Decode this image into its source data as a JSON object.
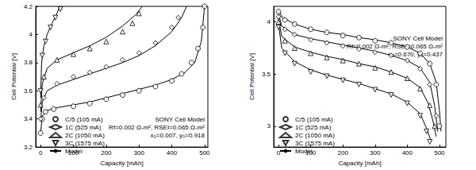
{
  "chart_data": [
    {
      "type": "scatter",
      "x_label": "Capacity [mAh]",
      "y_label": "Cell Potential [V]",
      "xlim": [
        -15,
        510
      ],
      "xticks": [
        0,
        100,
        200,
        300,
        400,
        500
      ],
      "ylim": [
        3.2,
        4.2
      ],
      "yticks": [
        3.2,
        3.4,
        3.6,
        3.8,
        4,
        4.2
      ],
      "grid": false,
      "legend": "lower left",
      "annotations": [
        "SONY Cell Model",
        "Rf=0.002 Ω-m², RSEI=0.065 Ω-m²",
        "x₀=0.007, y₀=0.918"
      ],
      "series": [
        {
          "name": "C/5 (105 mA)",
          "type": "scatter",
          "marker": "circle",
          "color": "#000000",
          "x": [
            0,
            5,
            15,
            40,
            100,
            150,
            200,
            250,
            300,
            350,
            400,
            430,
            460,
            480,
            495,
            500
          ],
          "values": [
            3.3,
            3.4,
            3.45,
            3.47,
            3.49,
            3.51,
            3.54,
            3.57,
            3.6,
            3.63,
            3.67,
            3.72,
            3.8,
            3.9,
            4.05,
            4.2
          ]
        },
        {
          "name": "1C (525 mA)",
          "type": "scatter",
          "marker": "diamond",
          "color": "#000000",
          "x": [
            0,
            10,
            50,
            100,
            150,
            200,
            250,
            300,
            350,
            400,
            420
          ],
          "values": [
            3.4,
            3.55,
            3.65,
            3.7,
            3.73,
            3.77,
            3.82,
            3.87,
            3.94,
            4.05,
            4.12
          ]
        },
        {
          "name": "2C (1050 mA)",
          "type": "scatter",
          "marker": "triangle",
          "color": "#000000",
          "x": [
            0,
            10,
            50,
            100,
            150,
            200,
            250,
            280,
            300
          ],
          "values": [
            3.5,
            3.7,
            3.82,
            3.86,
            3.9,
            3.95,
            4.02,
            4.08,
            4.15
          ]
        },
        {
          "name": "3C (1575 mA)",
          "type": "scatter",
          "marker": "triangle-down",
          "color": "#000000",
          "x": [
            0,
            5,
            15,
            30,
            45,
            60
          ],
          "values": [
            3.6,
            3.85,
            3.95,
            4.05,
            4.12,
            4.18
          ]
        },
        {
          "name": "Model",
          "type": "line",
          "line_style": "solid",
          "color": "#000000",
          "x": [
            0,
            5,
            20,
            50,
            100,
            150,
            200,
            250,
            300,
            350,
            400,
            440,
            470,
            490,
            500
          ],
          "values": [
            3.3,
            3.42,
            3.46,
            3.48,
            3.5,
            3.52,
            3.55,
            3.58,
            3.61,
            3.64,
            3.68,
            3.73,
            3.8,
            3.95,
            4.2
          ]
        },
        {
          "name": "Model",
          "type": "line",
          "line_style": "solid",
          "color": "#000000",
          "x": [
            0,
            5,
            20,
            50,
            100,
            150,
            200,
            250,
            300,
            350,
            400,
            430,
            445
          ],
          "values": [
            3.38,
            3.52,
            3.6,
            3.64,
            3.68,
            3.72,
            3.76,
            3.8,
            3.85,
            3.92,
            4.02,
            4.12,
            4.2
          ]
        },
        {
          "name": "Model",
          "type": "line",
          "line_style": "solid",
          "color": "#000000",
          "x": [
            0,
            5,
            20,
            50,
            100,
            150,
            200,
            250,
            290,
            310
          ],
          "values": [
            3.45,
            3.65,
            3.76,
            3.82,
            3.87,
            3.92,
            3.98,
            4.06,
            4.14,
            4.2
          ]
        },
        {
          "name": "Model",
          "type": "line",
          "line_style": "solid",
          "color": "#000000",
          "x": [
            0,
            3,
            10,
            20,
            35,
            50,
            58
          ],
          "values": [
            3.55,
            3.8,
            3.92,
            4.0,
            4.08,
            4.15,
            4.2
          ]
        }
      ]
    },
    {
      "type": "scatter",
      "x_label": "Capacity [mAh]",
      "y_label": "Cell Potential [V]",
      "xlim": [
        -15,
        520
      ],
      "xticks": [
        0,
        100,
        200,
        300,
        400,
        500
      ],
      "ylim": [
        2.8,
        4.15
      ],
      "yticks": [
        3,
        3.5,
        4
      ],
      "grid": false,
      "legend": "lower left",
      "annotations": [
        "SONY Cell Model",
        "Rf=0.002 Ω-m², RSEI=0.065 Ω-m²",
        "x₀=0.670, y₀=0.437"
      ],
      "series": [
        {
          "name": "C/5 (105 mA)",
          "type": "scatter",
          "marker": "circle",
          "color": "#000000",
          "x": [
            0,
            20,
            50,
            100,
            150,
            200,
            250,
            300,
            350,
            400,
            440,
            470,
            490,
            500
          ],
          "values": [
            4.1,
            4.02,
            3.98,
            3.93,
            3.9,
            3.87,
            3.85,
            3.82,
            3.8,
            3.76,
            3.7,
            3.6,
            3.4,
            3.0
          ]
        },
        {
          "name": "1C (525 mA)",
          "type": "scatter",
          "marker": "diamond",
          "color": "#000000",
          "x": [
            0,
            20,
            50,
            100,
            150,
            200,
            250,
            300,
            350,
            400,
            440,
            470,
            490
          ],
          "values": [
            4.05,
            3.93,
            3.88,
            3.83,
            3.8,
            3.77,
            3.74,
            3.71,
            3.68,
            3.63,
            3.55,
            3.4,
            3.1
          ]
        },
        {
          "name": "2C (1050 mA)",
          "type": "scatter",
          "marker": "triangle",
          "color": "#000000",
          "x": [
            0,
            20,
            50,
            100,
            150,
            200,
            250,
            300,
            350,
            400,
            440,
            470,
            485
          ],
          "values": [
            4.0,
            3.82,
            3.75,
            3.7,
            3.66,
            3.63,
            3.6,
            3.56,
            3.52,
            3.46,
            3.36,
            3.2,
            3.0
          ]
        },
        {
          "name": "3C (1575 mA)",
          "type": "scatter",
          "marker": "triangle-down",
          "color": "#000000",
          "x": [
            0,
            20,
            50,
            100,
            150,
            200,
            250,
            300,
            350,
            400,
            440,
            460,
            470
          ],
          "values": [
            3.95,
            3.7,
            3.6,
            3.52,
            3.48,
            3.44,
            3.4,
            3.35,
            3.3,
            3.22,
            3.1,
            2.95,
            2.85
          ]
        },
        {
          "name": "Model",
          "type": "line",
          "line_style": "solid",
          "color": "#000000",
          "x": [
            0,
            10,
            50,
            100,
            150,
            200,
            250,
            300,
            350,
            400,
            440,
            470,
            490,
            500,
            505
          ],
          "values": [
            4.12,
            4.05,
            3.98,
            3.93,
            3.9,
            3.88,
            3.85,
            3.83,
            3.8,
            3.76,
            3.7,
            3.6,
            3.42,
            3.15,
            2.95
          ]
        },
        {
          "name": "Model",
          "type": "line",
          "line_style": "solid",
          "color": "#000000",
          "x": [
            0,
            10,
            50,
            100,
            150,
            200,
            250,
            300,
            350,
            400,
            440,
            470,
            485,
            495
          ],
          "values": [
            4.08,
            3.96,
            3.88,
            3.84,
            3.81,
            3.78,
            3.75,
            3.72,
            3.68,
            3.63,
            3.56,
            3.42,
            3.2,
            2.95
          ]
        },
        {
          "name": "Model",
          "type": "line",
          "line_style": "solid",
          "color": "#000000",
          "x": [
            0,
            10,
            50,
            100,
            150,
            200,
            250,
            300,
            350,
            400,
            440,
            465,
            480,
            490
          ],
          "values": [
            4.03,
            3.86,
            3.76,
            3.71,
            3.67,
            3.64,
            3.6,
            3.57,
            3.52,
            3.46,
            3.37,
            3.22,
            3.05,
            2.9
          ]
        },
        {
          "name": "Model",
          "type": "line",
          "line_style": "solid",
          "color": "#000000",
          "x": [
            0,
            10,
            50,
            100,
            150,
            200,
            250,
            300,
            350,
            400,
            440,
            460,
            475
          ],
          "values": [
            3.98,
            3.75,
            3.62,
            3.54,
            3.49,
            3.45,
            3.41,
            3.36,
            3.31,
            3.23,
            3.12,
            2.98,
            2.85
          ]
        }
      ]
    }
  ]
}
